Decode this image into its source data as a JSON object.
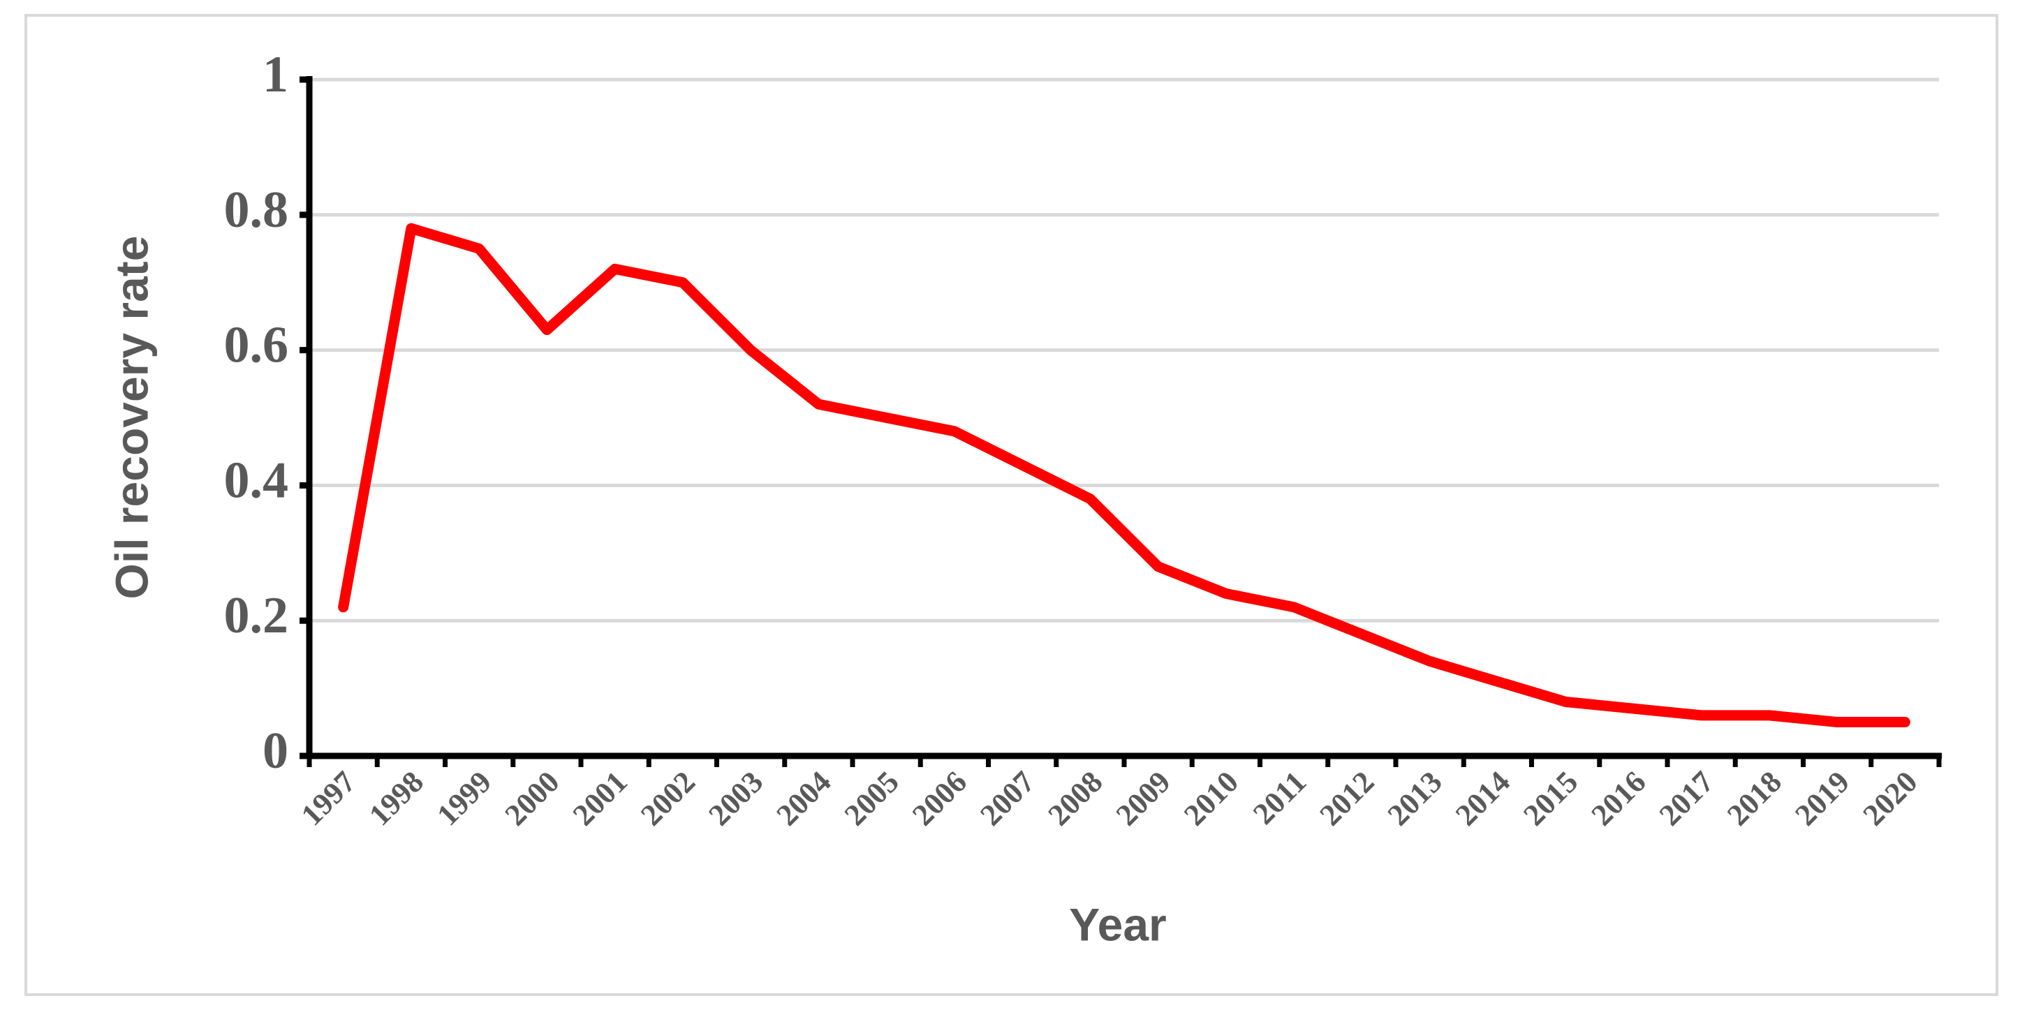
{
  "chart_data": {
    "type": "line",
    "x_label": "Year",
    "y_label": "Oil recovery rate",
    "categories": [
      "1997",
      "1998",
      "1999",
      "2000",
      "2001",
      "2002",
      "2003",
      "2004",
      "2005",
      "2006",
      "2007",
      "2008",
      "2009",
      "2010",
      "2011",
      "2012",
      "2013",
      "2014",
      "2015",
      "2016",
      "2017",
      "2018",
      "2019",
      "2020"
    ],
    "series": [
      {
        "color": "#ff0000",
        "values": [
          0.22,
          0.78,
          0.75,
          0.63,
          0.72,
          0.7,
          0.6,
          0.52,
          0.5,
          0.48,
          0.43,
          0.38,
          0.28,
          0.24,
          0.22,
          0.18,
          0.14,
          0.11,
          0.08,
          0.07,
          0.06,
          0.06,
          0.05,
          0.05
        ]
      }
    ],
    "ylim": [
      0,
      1
    ],
    "yticks": [
      0,
      0.2,
      0.4,
      0.6,
      0.8,
      1
    ],
    "grid": true
  }
}
